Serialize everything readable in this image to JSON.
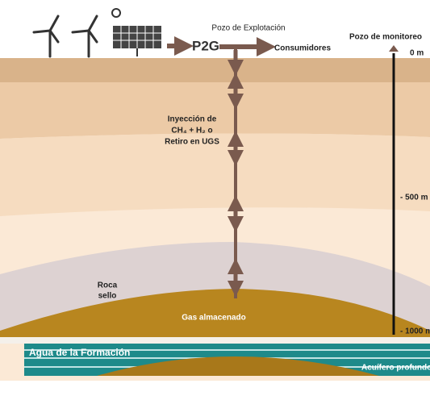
{
  "labels": {
    "pozo_explotacion": "Pozo de Explotación",
    "p2g": "P2G",
    "consumidores": "Consumidores",
    "pozo_monitoreo": "Pozo de monitoreo",
    "depths": [
      "0 m",
      "- 500 m",
      "- 1000 m"
    ],
    "inyeccion": [
      "Inyección de",
      "CH₄ + H₂ o",
      "Retiro en UGS"
    ],
    "roca_sello": [
      "Roca",
      "sello"
    ],
    "gas": "Gas almacenado",
    "agua": "Agua de la Formación",
    "acuifero": "Acuífero profundo"
  }
}
